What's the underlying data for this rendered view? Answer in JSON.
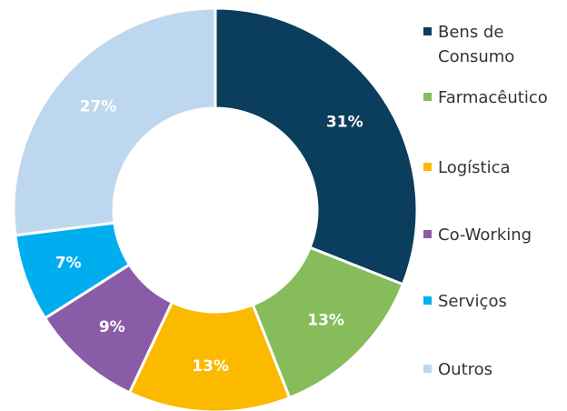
{
  "chart_data": {
    "type": "donut",
    "categories": [
      "Bens de Consumo",
      "Farmacêutico",
      "Logística",
      "Co-Working",
      "Serviços",
      "Outros"
    ],
    "values": [
      31,
      13,
      13,
      9,
      7,
      27
    ],
    "value_labels": [
      "31%",
      "13%",
      "13%",
      "9%",
      "7%",
      "27%"
    ],
    "colors": [
      "#0b3d5c",
      "#86bc5a",
      "#fbb900",
      "#8a5ca8",
      "#00aeef",
      "#bdd7ee"
    ],
    "legend": "right"
  }
}
